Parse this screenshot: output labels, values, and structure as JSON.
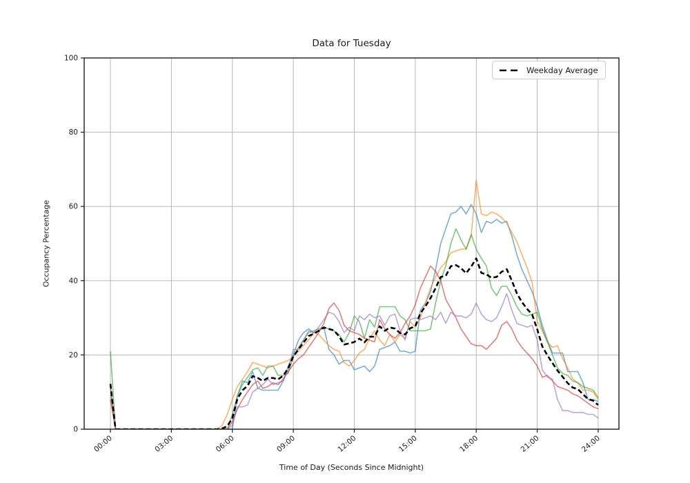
{
  "figure": {
    "title": "Data for Tuesday",
    "xlabel": "Time of Day (Seconds Since Midnight)",
    "ylabel": "Occupancy Percentage"
  },
  "legend": {
    "label": "Weekday Average"
  },
  "chart_data": {
    "type": "line",
    "title": "Data for Tuesday",
    "xlabel": "Time of Day (Seconds Since Midnight)",
    "ylabel": "Occupancy Percentage",
    "grid": true,
    "legend_position": "upper right",
    "ylim": [
      0,
      100
    ],
    "xlim_hours": [
      -1.29,
      25.02
    ],
    "x_ticks": [
      {
        "hour": 0,
        "label": "00:00"
      },
      {
        "hour": 3,
        "label": "03:00"
      },
      {
        "hour": 6,
        "label": "06:00"
      },
      {
        "hour": 9,
        "label": "09:00"
      },
      {
        "hour": 12,
        "label": "12:00"
      },
      {
        "hour": 15,
        "label": "15:00"
      },
      {
        "hour": 18,
        "label": "18:00"
      },
      {
        "hour": 21,
        "label": "21:00"
      },
      {
        "hour": 24,
        "label": "24:00"
      }
    ],
    "y_ticks": [
      {
        "value": 0,
        "label": "0"
      },
      {
        "value": 20,
        "label": "20"
      },
      {
        "value": 40,
        "label": "40"
      },
      {
        "value": 60,
        "label": "60"
      },
      {
        "value": 80,
        "label": "80"
      },
      {
        "value": 100,
        "label": "100"
      }
    ],
    "t_start_hours": 0,
    "t_step_hours": 0.25,
    "series": [
      {
        "id": "weekday-1",
        "color": "rgba(31,119,180,0.6)",
        "values": [
          12,
          0,
          0,
          0,
          0,
          0,
          0,
          0,
          0,
          0,
          0,
          0,
          0,
          0,
          0,
          0,
          0,
          0,
          0,
          0,
          0,
          0,
          0,
          0,
          0,
          9,
          13,
          12.5,
          15.5,
          11,
          10.5,
          10.5,
          10.5,
          10.5,
          13,
          17,
          20,
          24,
          26,
          27,
          26,
          26.5,
          27.5,
          21.5,
          20,
          17.5,
          18.5,
          18.5,
          16,
          16.5,
          17,
          15.5,
          17,
          21.5,
          22,
          22.5,
          23.5,
          21,
          21,
          20.5,
          21,
          32,
          34,
          37,
          43,
          50,
          54,
          58,
          58.5,
          60,
          58,
          60.5,
          58,
          53,
          56,
          55.5,
          56.5,
          55.5,
          56,
          52,
          47,
          43,
          40,
          37,
          33,
          28,
          24,
          20.5,
          20.5,
          20.5,
          15.5,
          15.5,
          15.5,
          12.5,
          8,
          8,
          7.5
        ]
      },
      {
        "id": "weekday-2",
        "color": "rgba(255,127,14,0.6)",
        "values": [
          9,
          0,
          0,
          0,
          0,
          0,
          0,
          0,
          0,
          0,
          0,
          0,
          0,
          0,
          0,
          0,
          0,
          0,
          0,
          0,
          0,
          0,
          1,
          4,
          8,
          11.5,
          13.5,
          15.5,
          18,
          17.5,
          17,
          16.5,
          17,
          17.5,
          18,
          18.5,
          19.5,
          21,
          22.5,
          24,
          26,
          25.5,
          24,
          22.5,
          21.5,
          21,
          18,
          17,
          18.5,
          20.5,
          21.5,
          24.5,
          26.5,
          24,
          22.5,
          25.5,
          23.5,
          25.5,
          24.5,
          29,
          27.5,
          30,
          34,
          38,
          41,
          43.5,
          45,
          47.5,
          48,
          48.5,
          48.5,
          52,
          67,
          58,
          57.5,
          58.5,
          58,
          57,
          55.5,
          53,
          50.5,
          47,
          43.5,
          39.5,
          29,
          26.5,
          23.5,
          22,
          22.5,
          19,
          16.5,
          13.5,
          12.5,
          10.5,
          10.5,
          10,
          8
        ]
      },
      {
        "id": "weekday-3",
        "color": "rgba(44,160,44,0.6)",
        "values": [
          21,
          0,
          0,
          0,
          0,
          0,
          0,
          0,
          0,
          0,
          0,
          0,
          0,
          0,
          0,
          0,
          0,
          0,
          0,
          0,
          0,
          0,
          0,
          0,
          4,
          9,
          12,
          14,
          16,
          16.5,
          14.5,
          17,
          17,
          14.5,
          14.5,
          15,
          19.5,
          22,
          24,
          26,
          26.5,
          27,
          27.5,
          27,
          26.5,
          25.5,
          23.5,
          26,
          30.5,
          29,
          24.5,
          29.5,
          27.5,
          33,
          33,
          33,
          33,
          30.5,
          29.5,
          26.5,
          26.5,
          26.5,
          26.5,
          27,
          34,
          40,
          44,
          50,
          54,
          51,
          48.5,
          52.5,
          48.5,
          46,
          44,
          38,
          36,
          38.5,
          38.5,
          36,
          33,
          31,
          30.5,
          31,
          31.5,
          27,
          23.5,
          20,
          16.5,
          15,
          14.5,
          13,
          12.5,
          11.5,
          11,
          10.5,
          8.5
        ]
      },
      {
        "id": "weekday-4",
        "color": "rgba(214,39,40,0.6)",
        "values": [
          8,
          0,
          0,
          0,
          0,
          0,
          0,
          0,
          0,
          0,
          0,
          0,
          0,
          0,
          0,
          0,
          0,
          0,
          0,
          0,
          0,
          0,
          0,
          0,
          2,
          5.5,
          8,
          10,
          12,
          13,
          11,
          11.5,
          12.5,
          12,
          13.5,
          15.5,
          17.5,
          19,
          20,
          22,
          24,
          26,
          28.5,
          32.5,
          34,
          32,
          28,
          26.5,
          26,
          25.5,
          24.5,
          24,
          23.5,
          29.5,
          27,
          25.5,
          24.5,
          26,
          28.5,
          30.5,
          33.5,
          38,
          41,
          44,
          42.5,
          40,
          35,
          32.5,
          30,
          27,
          25,
          23,
          22.5,
          22.5,
          21.5,
          23,
          24.5,
          28,
          29,
          27,
          24,
          22,
          20.5,
          19,
          17,
          14,
          14.5,
          13,
          11.5,
          11,
          10.5,
          9.5,
          9,
          8,
          7,
          6,
          5.5
        ]
      },
      {
        "id": "weekday-5",
        "color": "rgba(148,103,189,0.6)",
        "values": [
          11,
          0,
          0,
          0,
          0,
          0,
          0,
          0,
          0,
          0,
          0,
          0,
          0,
          0,
          0,
          0,
          0,
          0,
          0,
          0,
          0,
          0,
          0,
          0,
          1,
          6,
          6,
          6.5,
          10,
          11,
          12,
          13.5,
          12,
          12.5,
          13,
          16,
          21.5,
          21.5,
          24,
          26.5,
          26,
          27.5,
          29.5,
          31.5,
          31,
          29,
          26,
          27.5,
          26.5,
          30.5,
          29.5,
          31,
          30,
          30.5,
          28,
          30.5,
          31,
          26.5,
          24,
          29.5,
          30,
          29.5,
          30,
          30.5,
          29.5,
          31.5,
          28.5,
          31.5,
          30.5,
          30.5,
          30,
          31,
          34,
          31,
          29.5,
          29,
          30,
          33,
          36.5,
          32,
          28.5,
          28,
          27.5,
          28,
          24,
          16,
          14,
          13.5,
          8,
          5,
          5,
          4.5,
          4.5,
          4.5,
          4,
          4,
          3
        ]
      }
    ],
    "average_series": {
      "label": "Weekday Average",
      "color": "#000000",
      "style": "dashed",
      "derived": "mean_of_series"
    }
  }
}
